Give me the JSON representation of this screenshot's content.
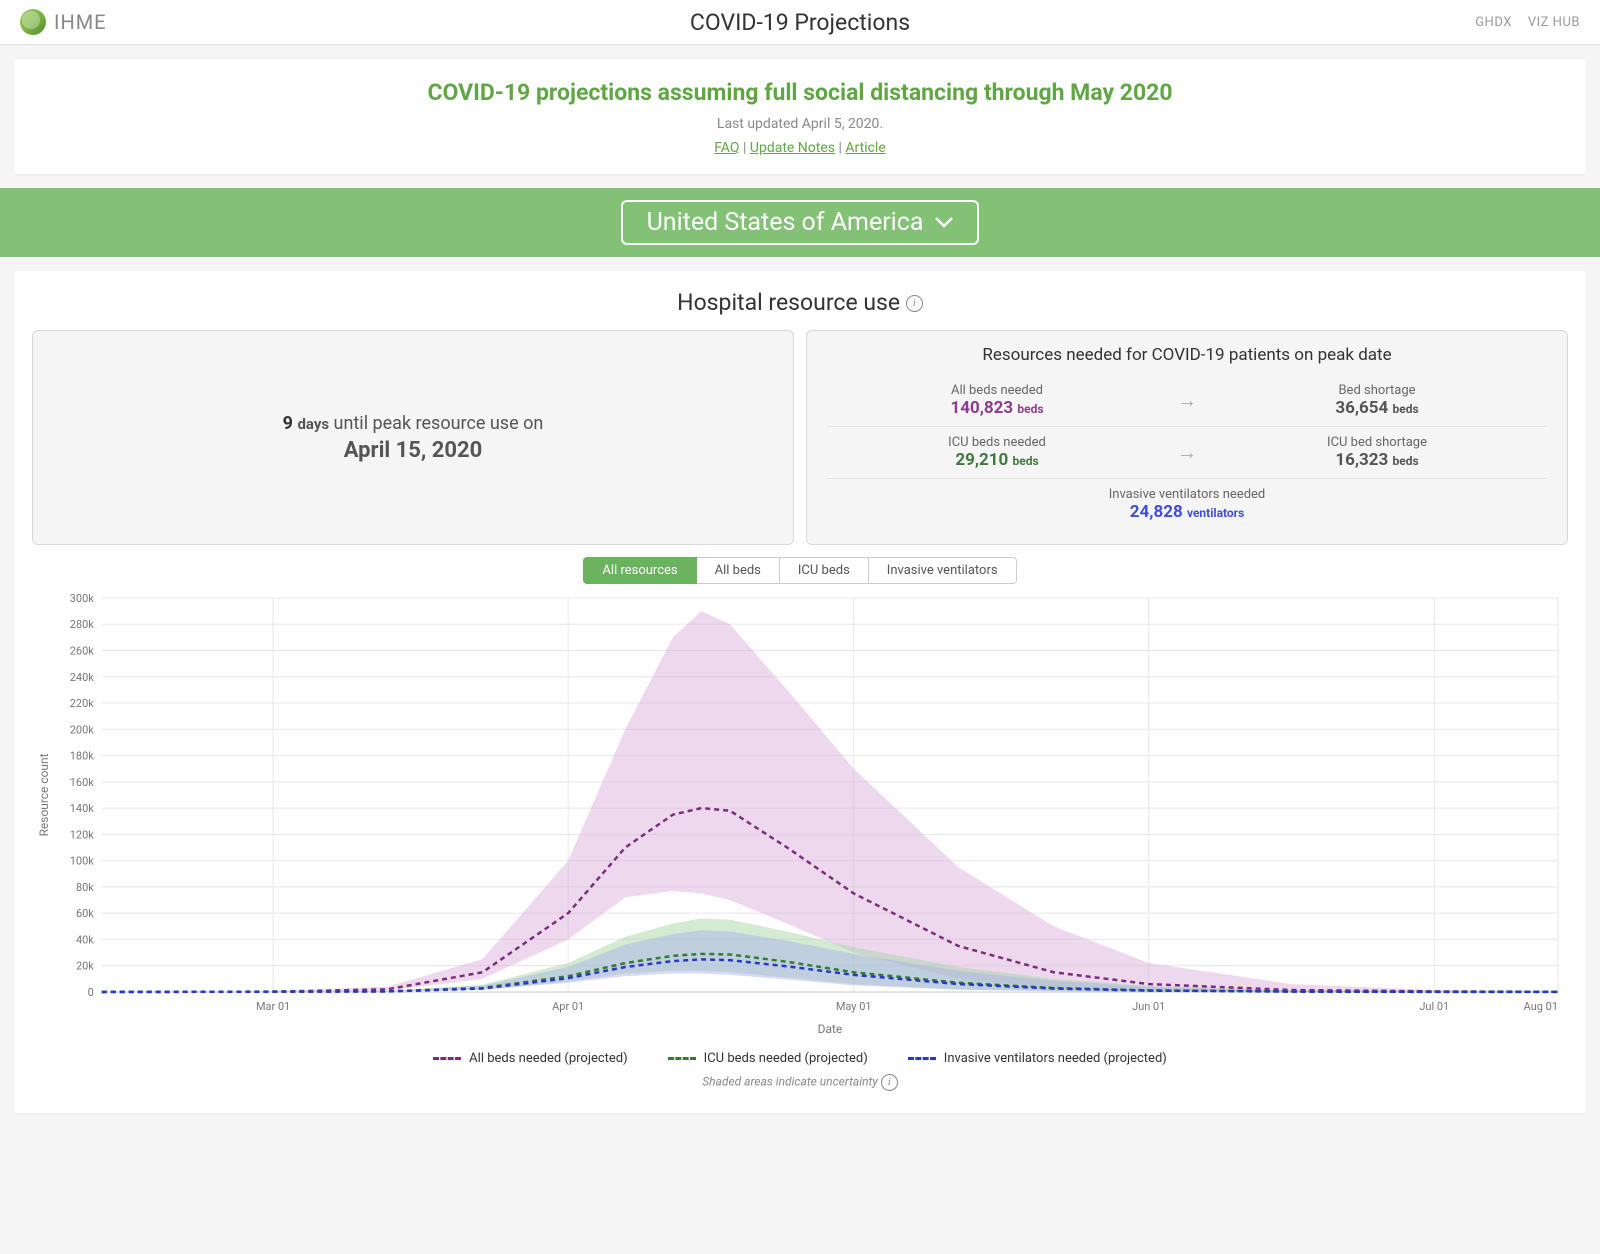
{
  "header": {
    "brand": "IHME",
    "title": "COVID-19 Projections",
    "links": {
      "ghdx": "GHDX",
      "vizhub": "VIZ HUB"
    }
  },
  "hero": {
    "headline": "COVID-19 projections assuming full social distancing through May 2020",
    "updated": "Last updated April 5, 2020.",
    "links": {
      "faq": "FAQ",
      "notes": "Update Notes",
      "article": "Article"
    },
    "sep": " | "
  },
  "region": {
    "selected": "United States of America"
  },
  "panel": {
    "title": "Hospital resource use",
    "peak": {
      "days": "9",
      "days_unit": "days",
      "line1_rest": " until peak resource use on",
      "date": "April 15, 2020"
    },
    "resources": {
      "title": "Resources needed for COVID-19 patients on peak date",
      "rows": [
        {
          "left_label": "All beds needed",
          "left_value": "140,823",
          "left_unit": "beds",
          "color": "purple",
          "right_label": "Bed shortage",
          "right_value": "36,654",
          "right_unit": "beds"
        },
        {
          "left_label": "ICU beds needed",
          "left_value": "29,210",
          "left_unit": "beds",
          "color": "green",
          "right_label": "ICU bed shortage",
          "right_value": "16,323",
          "right_unit": "beds"
        },
        {
          "left_label": "Invasive ventilators needed",
          "left_value": "24,828",
          "left_unit": "ventilators",
          "color": "blue",
          "right_label": null,
          "right_value": null,
          "right_unit": null
        }
      ]
    },
    "tabs": [
      {
        "label": "All resources",
        "active": true
      },
      {
        "label": "All beds",
        "active": false
      },
      {
        "label": "ICU beds",
        "active": false
      },
      {
        "label": "Invasive ventilators",
        "active": false
      }
    ]
  },
  "chart": {
    "type": "line",
    "y_label": "Resource count",
    "x_label": "Date",
    "background_color": "#ffffff",
    "grid_color": "#e8e8e8",
    "axis_color": "#cccccc",
    "tick_font_size": 11,
    "tick_color": "#777777",
    "label_font_size": 12,
    "ylim": [
      0,
      300000
    ],
    "ytick_step": 20000,
    "ytick_labels": [
      "0",
      "20k",
      "40k",
      "60k",
      "80k",
      "100k",
      "120k",
      "140k",
      "160k",
      "180k",
      "200k",
      "220k",
      "240k",
      "260k",
      "280k",
      "300k"
    ],
    "x_numeric_range": [
      0,
      153
    ],
    "xticks": [
      {
        "pos": 18,
        "label": "Mar 01"
      },
      {
        "pos": 49,
        "label": "Apr 01"
      },
      {
        "pos": 79,
        "label": "May 01"
      },
      {
        "pos": 110,
        "label": "Jun 01"
      },
      {
        "pos": 140,
        "label": "Jul 01"
      },
      {
        "pos": 153,
        "label": "Aug 01"
      }
    ],
    "series": [
      {
        "name": "All beds needed (projected)",
        "color": "#7b2d7b",
        "band_color": "#d9a8d9",
        "band_opacity": 0.45,
        "dash": "5,4",
        "line_width": 2.5,
        "points": [
          {
            "x": 0,
            "y": 0,
            "lo": 0,
            "hi": 0
          },
          {
            "x": 18,
            "y": 200,
            "lo": 100,
            "hi": 400
          },
          {
            "x": 30,
            "y": 2000,
            "lo": 1000,
            "hi": 4000
          },
          {
            "x": 40,
            "y": 15000,
            "lo": 10000,
            "hi": 25000
          },
          {
            "x": 49,
            "y": 60000,
            "lo": 40000,
            "hi": 100000
          },
          {
            "x": 55,
            "y": 110000,
            "lo": 72000,
            "hi": 200000
          },
          {
            "x": 60,
            "y": 135000,
            "lo": 77000,
            "hi": 270000
          },
          {
            "x": 63,
            "y": 140000,
            "lo": 75000,
            "hi": 290000
          },
          {
            "x": 66,
            "y": 138000,
            "lo": 70000,
            "hi": 280000
          },
          {
            "x": 72,
            "y": 110000,
            "lo": 52000,
            "hi": 230000
          },
          {
            "x": 79,
            "y": 75000,
            "lo": 30000,
            "hi": 170000
          },
          {
            "x": 90,
            "y": 35000,
            "lo": 10000,
            "hi": 95000
          },
          {
            "x": 100,
            "y": 15000,
            "lo": 3000,
            "hi": 50000
          },
          {
            "x": 110,
            "y": 6000,
            "lo": 1000,
            "hi": 22000
          },
          {
            "x": 125,
            "y": 1500,
            "lo": 200,
            "hi": 6000
          },
          {
            "x": 140,
            "y": 400,
            "lo": 50,
            "hi": 1500
          },
          {
            "x": 153,
            "y": 100,
            "lo": 10,
            "hi": 400
          }
        ]
      },
      {
        "name": "ICU beds needed (projected)",
        "color": "#2f7d32",
        "band_color": "#a8d6a8",
        "band_opacity": 0.5,
        "dash": "5,4",
        "line_width": 2.5,
        "points": [
          {
            "x": 0,
            "y": 0,
            "lo": 0,
            "hi": 0
          },
          {
            "x": 30,
            "y": 400,
            "lo": 200,
            "hi": 800
          },
          {
            "x": 40,
            "y": 3000,
            "lo": 1800,
            "hi": 5500
          },
          {
            "x": 49,
            "y": 12000,
            "lo": 8000,
            "hi": 22000
          },
          {
            "x": 55,
            "y": 22000,
            "lo": 14000,
            "hi": 42000
          },
          {
            "x": 60,
            "y": 27500,
            "lo": 16000,
            "hi": 52000
          },
          {
            "x": 63,
            "y": 29000,
            "lo": 16000,
            "hi": 56000
          },
          {
            "x": 66,
            "y": 28500,
            "lo": 15000,
            "hi": 55000
          },
          {
            "x": 72,
            "y": 23000,
            "lo": 11000,
            "hi": 46000
          },
          {
            "x": 79,
            "y": 15000,
            "lo": 6000,
            "hi": 34000
          },
          {
            "x": 90,
            "y": 7000,
            "lo": 2000,
            "hi": 19000
          },
          {
            "x": 100,
            "y": 3000,
            "lo": 600,
            "hi": 10000
          },
          {
            "x": 110,
            "y": 1200,
            "lo": 200,
            "hi": 4500
          },
          {
            "x": 125,
            "y": 300,
            "lo": 40,
            "hi": 1200
          },
          {
            "x": 140,
            "y": 80,
            "lo": 10,
            "hi": 300
          },
          {
            "x": 153,
            "y": 20,
            "lo": 2,
            "hi": 80
          }
        ]
      },
      {
        "name": "Invasive ventilators needed (projected)",
        "color": "#2936c9",
        "band_color": "#a8b0e8",
        "band_opacity": 0.45,
        "dash": "5,4",
        "line_width": 2.5,
        "points": [
          {
            "x": 0,
            "y": 0,
            "lo": 0,
            "hi": 0
          },
          {
            "x": 30,
            "y": 350,
            "lo": 180,
            "hi": 700
          },
          {
            "x": 40,
            "y": 2600,
            "lo": 1600,
            "hi": 4800
          },
          {
            "x": 49,
            "y": 10500,
            "lo": 7000,
            "hi": 19000
          },
          {
            "x": 55,
            "y": 19000,
            "lo": 12000,
            "hi": 36000
          },
          {
            "x": 60,
            "y": 23500,
            "lo": 14000,
            "hi": 44000
          },
          {
            "x": 63,
            "y": 24800,
            "lo": 14000,
            "hi": 47000
          },
          {
            "x": 66,
            "y": 24200,
            "lo": 13000,
            "hi": 46000
          },
          {
            "x": 72,
            "y": 19500,
            "lo": 9500,
            "hi": 39000
          },
          {
            "x": 79,
            "y": 13000,
            "lo": 5000,
            "hi": 29000
          },
          {
            "x": 90,
            "y": 6000,
            "lo": 1700,
            "hi": 16000
          },
          {
            "x": 100,
            "y": 2600,
            "lo": 500,
            "hi": 8500
          },
          {
            "x": 110,
            "y": 1000,
            "lo": 170,
            "hi": 3800
          },
          {
            "x": 125,
            "y": 260,
            "lo": 35,
            "hi": 1000
          },
          {
            "x": 140,
            "y": 70,
            "lo": 8,
            "hi": 260
          },
          {
            "x": 153,
            "y": 18,
            "lo": 2,
            "hi": 70
          }
        ]
      }
    ],
    "legend_items": [
      {
        "label": "All beds needed (projected)",
        "color": "#7b2d7b"
      },
      {
        "label": "ICU beds needed (projected)",
        "color": "#2f7d32"
      },
      {
        "label": "Invasive ventilators needed (projected)",
        "color": "#2936c9"
      }
    ],
    "footnote": "Shaded areas indicate uncertainty"
  }
}
